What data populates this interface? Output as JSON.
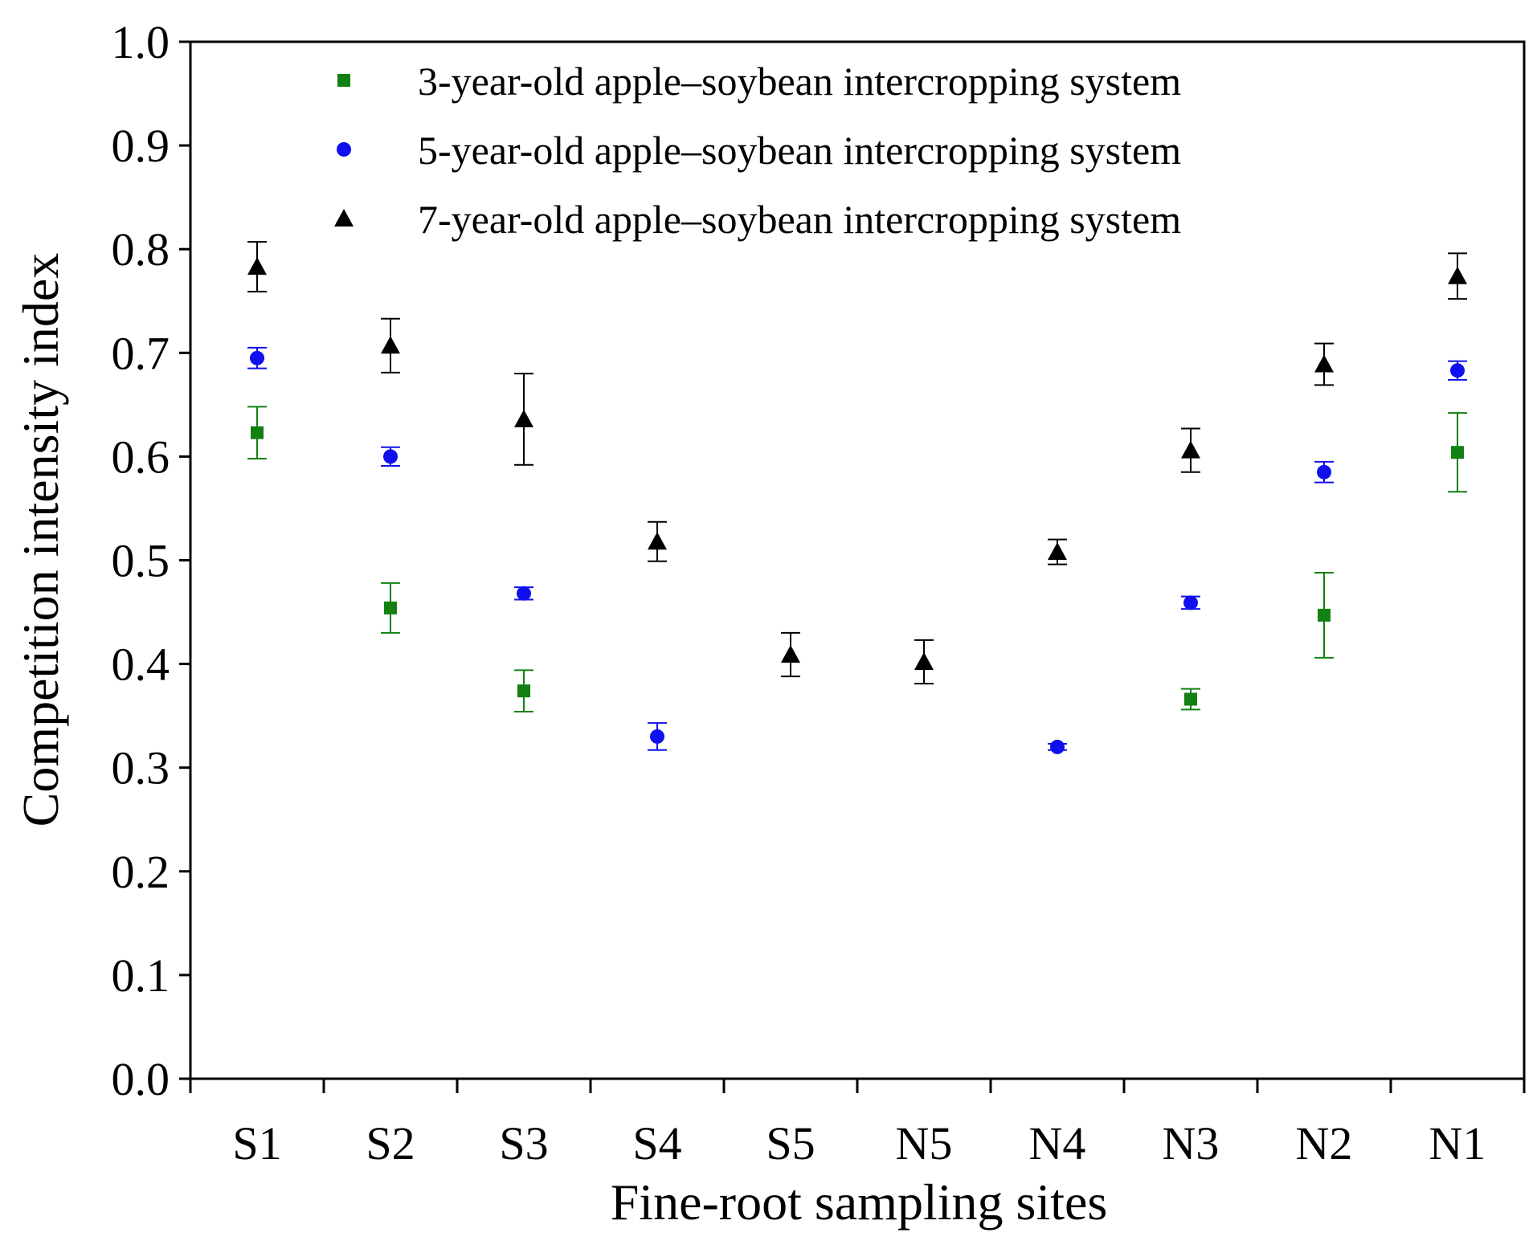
{
  "chart_data": {
    "type": "scatter",
    "title": "",
    "xlabel": "Fine-root sampling sites",
    "ylabel": "Competition intensity index",
    "categories": [
      "S1",
      "S2",
      "S3",
      "S4",
      "S5",
      "N5",
      "N4",
      "N3",
      "N2",
      "N1"
    ],
    "ylim": [
      0.0,
      1.0
    ],
    "yticks": [
      "0.0",
      "0.1",
      "0.2",
      "0.3",
      "0.4",
      "0.5",
      "0.6",
      "0.7",
      "0.8",
      "0.9",
      "1.0"
    ],
    "grid": false,
    "legend_position": "top-right",
    "series": [
      {
        "name": "3-year-old apple–soybean intercropping system",
        "marker": "square",
        "color": "#128012",
        "values": [
          0.623,
          0.454,
          0.374,
          null,
          null,
          null,
          null,
          0.366,
          0.447,
          0.604
        ],
        "errors": [
          0.025,
          0.024,
          0.02,
          null,
          null,
          null,
          null,
          0.01,
          0.041,
          0.038
        ]
      },
      {
        "name": "5-year-old apple–soybean intercropping system",
        "marker": "circle",
        "color": "#1010ee",
        "values": [
          0.695,
          0.6,
          0.468,
          0.33,
          null,
          null,
          0.32,
          0.459,
          0.585,
          0.683
        ],
        "errors": [
          0.01,
          0.009,
          0.006,
          0.013,
          null,
          null,
          0.003,
          0.006,
          0.01,
          0.009
        ]
      },
      {
        "name": "7-year-old apple–soybean intercropping system",
        "marker": "triangle",
        "color": "#000000",
        "values": [
          0.783,
          0.707,
          0.636,
          0.518,
          0.409,
          0.402,
          0.508,
          0.606,
          0.689,
          0.774
        ],
        "errors": [
          0.024,
          0.026,
          0.044,
          0.019,
          0.021,
          0.021,
          0.012,
          0.021,
          0.02,
          0.022
        ]
      }
    ]
  }
}
